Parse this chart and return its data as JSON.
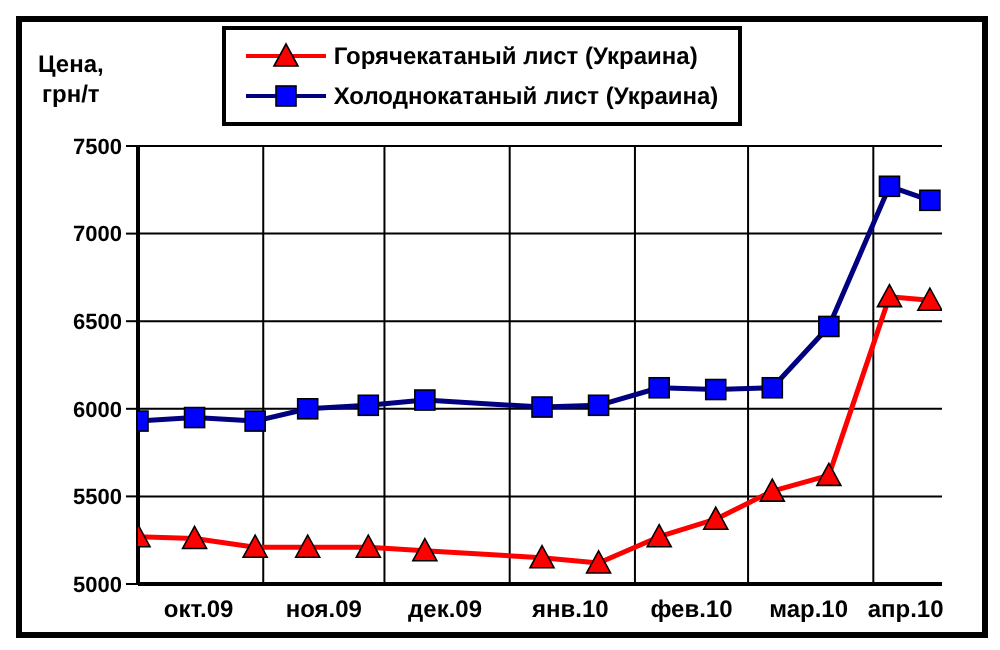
{
  "chart_data": {
    "type": "line",
    "ylabel": "Цена, грн/т",
    "x": [
      "2009-10-01",
      "2009-10-15",
      "2009-10-30",
      "2009-11-12",
      "2009-11-27",
      "2009-12-11",
      "2010-01-09",
      "2010-01-23",
      "2010-02-07",
      "2010-02-21",
      "2010-03-07",
      "2010-03-21",
      "2010-04-05",
      "2010-04-15"
    ],
    "series": [
      {
        "name": "Горячекатаный лист (Украина)",
        "color": "#ff0000",
        "marker": "triangle",
        "values": [
          5270,
          5260,
          5210,
          5210,
          5210,
          5190,
          5150,
          5120,
          5270,
          5370,
          5530,
          5620,
          6640,
          6620
        ]
      },
      {
        "name": "Холоднокатаный лист (Украина)",
        "color": "#000080",
        "marker": "square",
        "values": [
          5930,
          5950,
          5930,
          6000,
          6020,
          6050,
          6010,
          6020,
          6120,
          6110,
          6120,
          6470,
          7270,
          7190
        ]
      }
    ],
    "xlim": [
      "2009-10-01",
      "2010-04-18"
    ],
    "xticks": [
      {
        "value": "2009-10-16",
        "label": "окт.09"
      },
      {
        "value": "2009-11-01",
        "label": null
      },
      {
        "value": "2009-11-16",
        "label": "ноя.09"
      },
      {
        "value": "2009-12-01",
        "label": null
      },
      {
        "value": "2009-12-16",
        "label": "дек.09"
      },
      {
        "value": "2010-01-01",
        "label": null
      },
      {
        "value": "2010-01-16",
        "label": "янв.10"
      },
      {
        "value": "2010-02-01",
        "label": null
      },
      {
        "value": "2010-02-15",
        "label": "фев.10"
      },
      {
        "value": "2010-03-01",
        "label": null
      },
      {
        "value": "2010-03-16",
        "label": "мар.10"
      },
      {
        "value": "2010-04-01",
        "label": null
      },
      {
        "value": "2010-04-09",
        "label": "апр.10"
      }
    ],
    "ylim": [
      5000,
      7500
    ],
    "yticks": [
      5000,
      5500,
      6000,
      6500,
      7000,
      7500
    ],
    "grid": true,
    "legend": "top",
    "line_style": "solid"
  }
}
